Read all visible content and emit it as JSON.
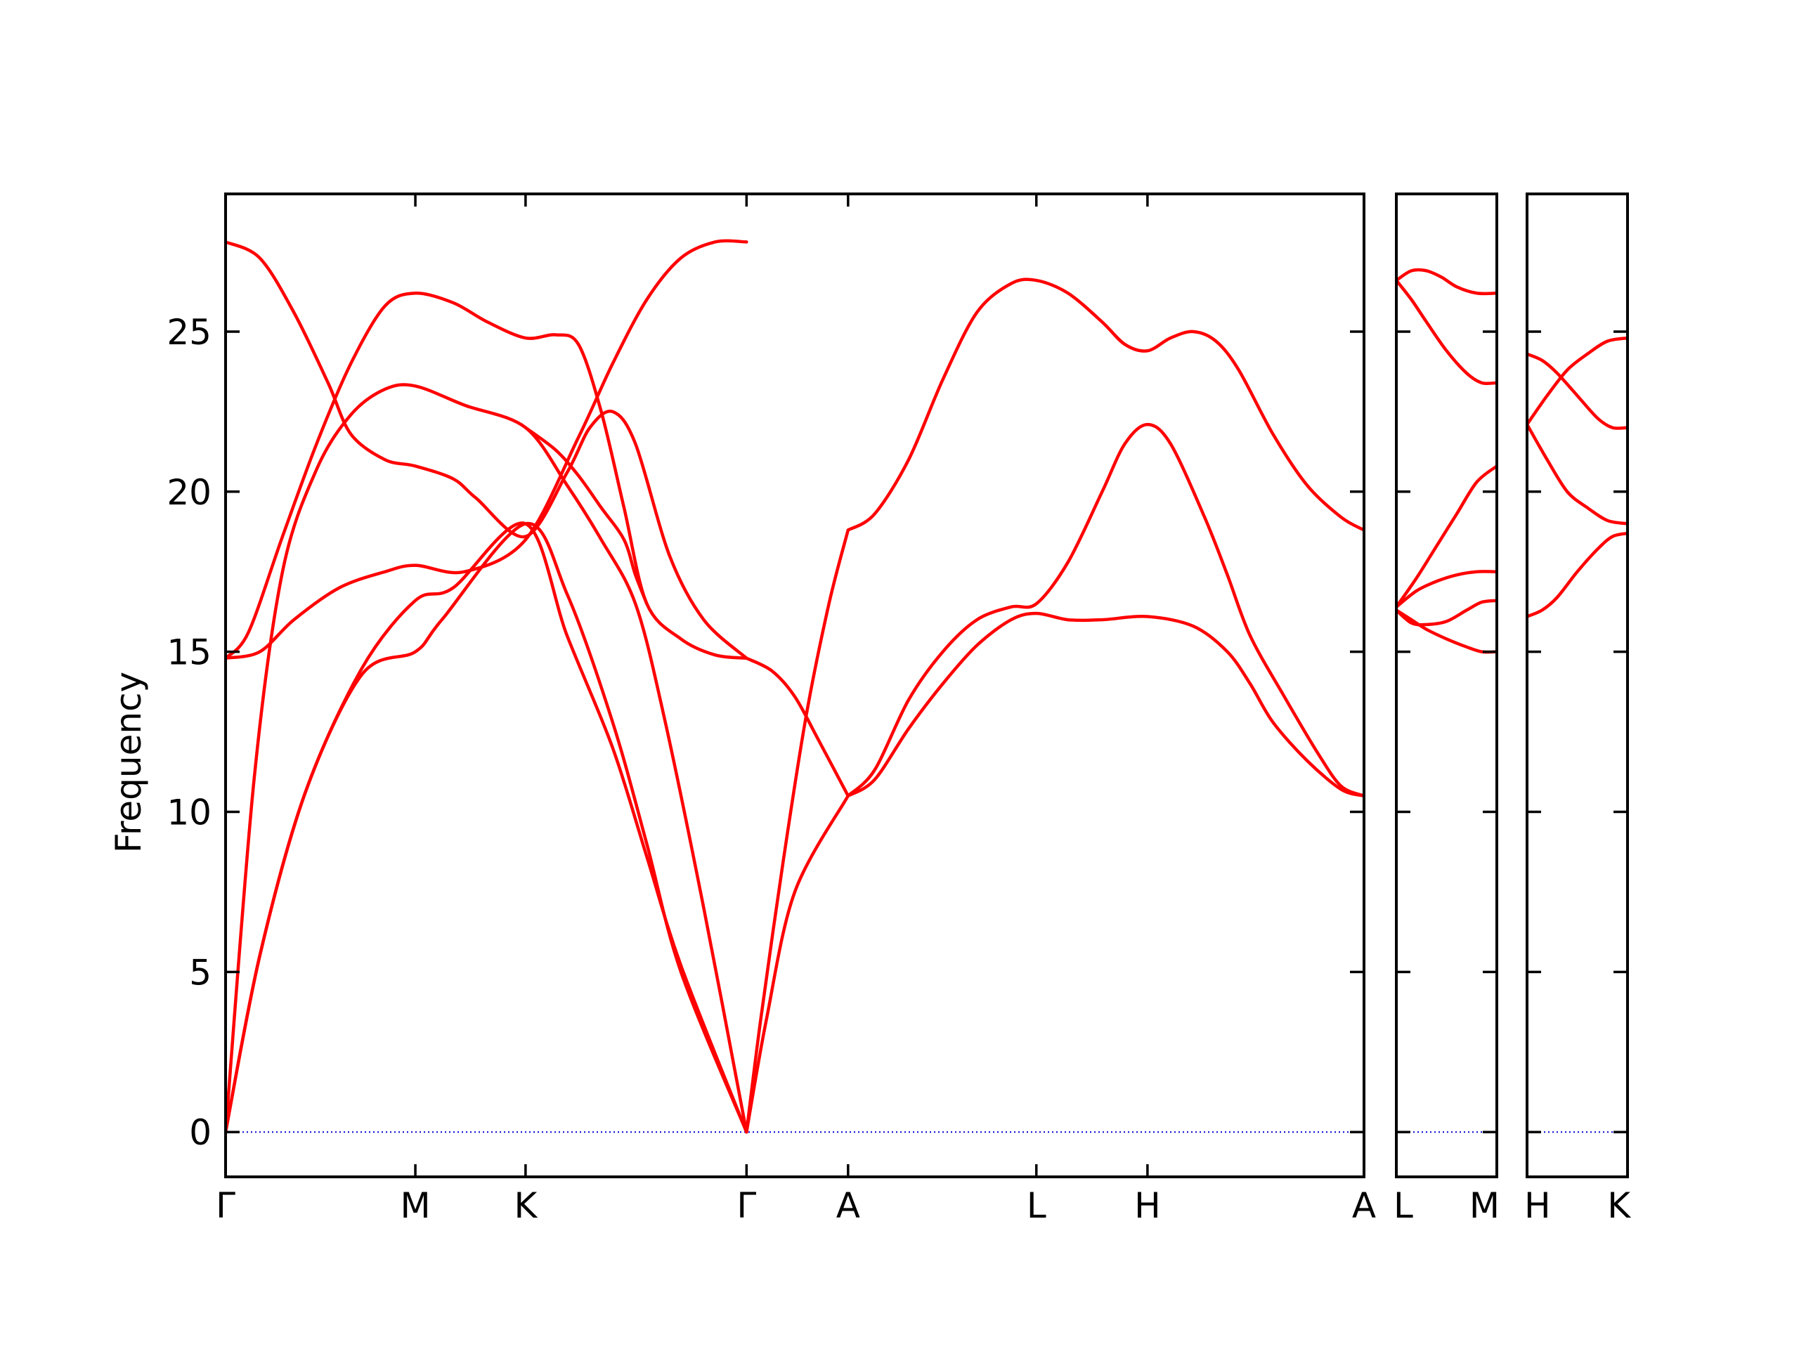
{
  "chart_data": {
    "type": "line",
    "title": "",
    "ylabel": "Frequency",
    "ylim": [
      -1.4,
      29.3
    ],
    "yticks": [
      0,
      5,
      10,
      15,
      20,
      25
    ],
    "colors": {
      "bands": "#ff0000",
      "zero_line": "#0000cc",
      "frame": "#000000"
    },
    "grid": false,
    "panels": [
      {
        "xlim": [
          0,
          1.0
        ],
        "tick_positions": [
          0,
          0.1667,
          0.2635,
          0.4576,
          0.5468,
          0.7122,
          0.8098,
          1.0
        ],
        "tick_labels": [
          "Γ",
          "M",
          "K",
          "Γ",
          "A",
          "L",
          "H",
          "A"
        ],
        "branches": [
          {
            "x": [
              0,
              0.03,
              0.07,
              0.12,
              0.1667,
              0.19,
              0.2635,
              0.3,
              0.34,
              0.37,
              0.4,
              0.4576
            ],
            "y": [
              0,
              5.5,
              10.6,
              14.3,
              15.0,
              16.0,
              19.0,
              16.8,
              12.8,
              9.0,
              5.0,
              0
            ]
          },
          {
            "x": [
              0,
              0.03,
              0.07,
              0.12,
              0.1667,
              0.2,
              0.2635,
              0.3,
              0.34,
              0.37,
              0.4,
              0.4576
            ],
            "y": [
              0,
              5.5,
              10.6,
              14.5,
              16.6,
              17.0,
              19.0,
              15.5,
              12.0,
              8.6,
              5.2,
              0
            ]
          },
          {
            "x": [
              0,
              0.025,
              0.05,
              0.08,
              0.11,
              0.14,
              0.1667,
              0.21,
              0.2635,
              0.3,
              0.33,
              0.36,
              0.385,
              0.42,
              0.4576
            ],
            "y": [
              0,
              11.0,
              17.5,
              20.7,
              22.4,
              23.2,
              23.3,
              22.7,
              22.0,
              20.2,
              18.5,
              16.5,
              13.0,
              7.0,
              0
            ]
          },
          {
            "x": [
              0,
              0.03,
              0.06,
              0.1,
              0.14,
              0.1667,
              0.21,
              0.2635,
              0.31,
              0.34,
              0.37,
              0.4,
              0.43,
              0.4576
            ],
            "y": [
              14.8,
              15.0,
              16.0,
              17.0,
              17.5,
              17.7,
              17.5,
              18.5,
              21.7,
              24.0,
              26.0,
              27.3,
              27.8,
              27.8
            ]
          },
          {
            "x": [
              0,
              0.03,
              0.06,
              0.09,
              0.11,
              0.14,
              0.1667,
              0.2,
              0.22,
              0.2635,
              0.3,
              0.32,
              0.34,
              0.36,
              0.39,
              0.42,
              0.4576
            ],
            "y": [
              27.8,
              27.3,
              25.6,
              23.4,
              21.8,
              21.0,
              20.8,
              20.4,
              19.8,
              18.6,
              20.6,
              22.0,
              22.5,
              21.5,
              18.0,
              16.0,
              14.8
            ]
          },
          {
            "x": [
              0,
              0.02,
              0.05,
              0.08,
              0.11,
              0.14,
              0.1667,
              0.2,
              0.23,
              0.2635,
              0.29,
              0.31,
              0.33,
              0.35,
              0.37,
              0.4,
              0.43,
              0.4576
            ],
            "y": [
              14.8,
              15.6,
              18.6,
              21.5,
              24.0,
              25.8,
              26.2,
              25.9,
              25.3,
              24.8,
              24.9,
              24.6,
              22.5,
              19.5,
              16.5,
              15.4,
              14.9,
              14.8
            ]
          },
          {
            "x": [
              0.2635,
              0.29,
              0.31,
              0.33,
              0.35,
              0.36,
              0.37
            ],
            "y": [
              22.0,
              21.3,
              20.5,
              19.5,
              18.5,
              17.4,
              16.5
            ]
          },
          {
            "x": [
              0.4576,
              0.47,
              0.49,
              0.51,
              0.53,
              0.5468
            ],
            "y": [
              0,
              3.5,
              8.5,
              13.0,
              16.5,
              18.8
            ]
          },
          {
            "x": [
              0.4576,
              0.475,
              0.5,
              0.5468
            ],
            "y": [
              0,
              3.5,
              7.5,
              10.5
            ]
          },
          {
            "x": [
              0.4576,
              0.48,
              0.5,
              0.52,
              0.5468
            ],
            "y": [
              14.8,
              14.4,
              13.6,
              12.3,
              10.5
            ]
          },
          {
            "x": [
              0.5468,
              0.57,
              0.6,
              0.63,
              0.66,
              0.69,
              0.7122,
              0.74,
              0.77,
              0.79,
              0.8098,
              0.83,
              0.85,
              0.87,
              0.89,
              0.92,
              0.95,
              0.98,
              1.0
            ],
            "y": [
              18.8,
              19.3,
              21.0,
              23.5,
              25.6,
              26.5,
              26.6,
              26.2,
              25.3,
              24.6,
              24.4,
              24.8,
              25.0,
              24.7,
              23.8,
              21.8,
              20.2,
              19.2,
              18.8
            ]
          },
          {
            "x": [
              0.5468,
              0.57,
              0.6,
              0.63,
              0.66,
              0.69,
              0.7122,
              0.74,
              0.77,
              0.79,
              0.8098,
              0.83,
              0.86,
              0.88,
              0.9,
              0.93,
              0.96,
              0.98,
              1.0
            ],
            "y": [
              10.5,
              11.3,
              13.5,
              15.0,
              16.0,
              16.4,
              16.5,
              17.8,
              20.0,
              21.5,
              22.1,
              21.5,
              19.2,
              17.4,
              15.5,
              13.6,
              11.8,
              10.8,
              10.5
            ]
          },
          {
            "x": [
              0.5468,
              0.57,
              0.6,
              0.63,
              0.66,
              0.69,
              0.7122,
              0.74,
              0.77,
              0.8098,
              0.85,
              0.88,
              0.9,
              0.92,
              0.95,
              0.98,
              1.0
            ],
            "y": [
              10.5,
              11.0,
              12.6,
              14.0,
              15.2,
              16.0,
              16.2,
              16.0,
              16.0,
              16.1,
              15.8,
              15.0,
              14.0,
              12.8,
              11.6,
              10.7,
              10.5
            ]
          }
        ]
      },
      {
        "xlim": [
          0,
          1.0
        ],
        "tick_positions": [
          0,
          1.0
        ],
        "tick_labels": [
          "L",
          "M"
        ],
        "branches": [
          {
            "x": [
              0,
              0.15,
              0.3,
              0.45,
              0.6,
              0.8,
              1.0
            ],
            "y": [
              26.6,
              26.9,
              26.9,
              26.7,
              26.4,
              26.2,
              26.2
            ]
          },
          {
            "x": [
              0,
              0.15,
              0.3,
              0.5,
              0.7,
              0.85,
              1.0
            ],
            "y": [
              26.6,
              26.0,
              25.3,
              24.4,
              23.7,
              23.4,
              23.4
            ]
          },
          {
            "x": [
              0,
              0.2,
              0.4,
              0.6,
              0.8,
              1.0
            ],
            "y": [
              16.4,
              17.3,
              18.3,
              19.3,
              20.3,
              20.8
            ]
          },
          {
            "x": [
              0,
              0.2,
              0.4,
              0.6,
              0.8,
              1.0
            ],
            "y": [
              16.4,
              16.9,
              17.2,
              17.4,
              17.5,
              17.5
            ]
          },
          {
            "x": [
              0,
              0.15,
              0.3,
              0.5,
              0.7,
              0.85,
              1.0
            ],
            "y": [
              16.3,
              15.9,
              15.85,
              15.95,
              16.3,
              16.55,
              16.6
            ]
          },
          {
            "x": [
              0,
              0.15,
              0.3,
              0.5,
              0.7,
              0.85,
              1.0
            ],
            "y": [
              16.3,
              16.0,
              15.7,
              15.4,
              15.15,
              15.0,
              15.0
            ]
          }
        ]
      },
      {
        "xlim": [
          0,
          1.0
        ],
        "tick_positions": [
          0,
          1.0
        ],
        "tick_labels": [
          "H",
          "K"
        ],
        "branches": [
          {
            "x": [
              0,
              0.2,
              0.4,
              0.6,
              0.8,
              1.0
            ],
            "y": [
              22.1,
              23.0,
              23.8,
              24.3,
              24.7,
              24.8
            ]
          },
          {
            "x": [
              0,
              0.15,
              0.3,
              0.5,
              0.7,
              0.85,
              1.0
            ],
            "y": [
              24.3,
              24.1,
              23.7,
              23.0,
              22.3,
              22.0,
              22.0
            ]
          },
          {
            "x": [
              0,
              0.2,
              0.4,
              0.6,
              0.8,
              1.0
            ],
            "y": [
              22.1,
              21.0,
              20.0,
              19.5,
              19.1,
              19.0
            ]
          },
          {
            "x": [
              0,
              0.15,
              0.3,
              0.5,
              0.7,
              0.85,
              1.0
            ],
            "y": [
              16.1,
              16.3,
              16.7,
              17.5,
              18.2,
              18.6,
              18.7
            ]
          }
        ]
      }
    ]
  }
}
